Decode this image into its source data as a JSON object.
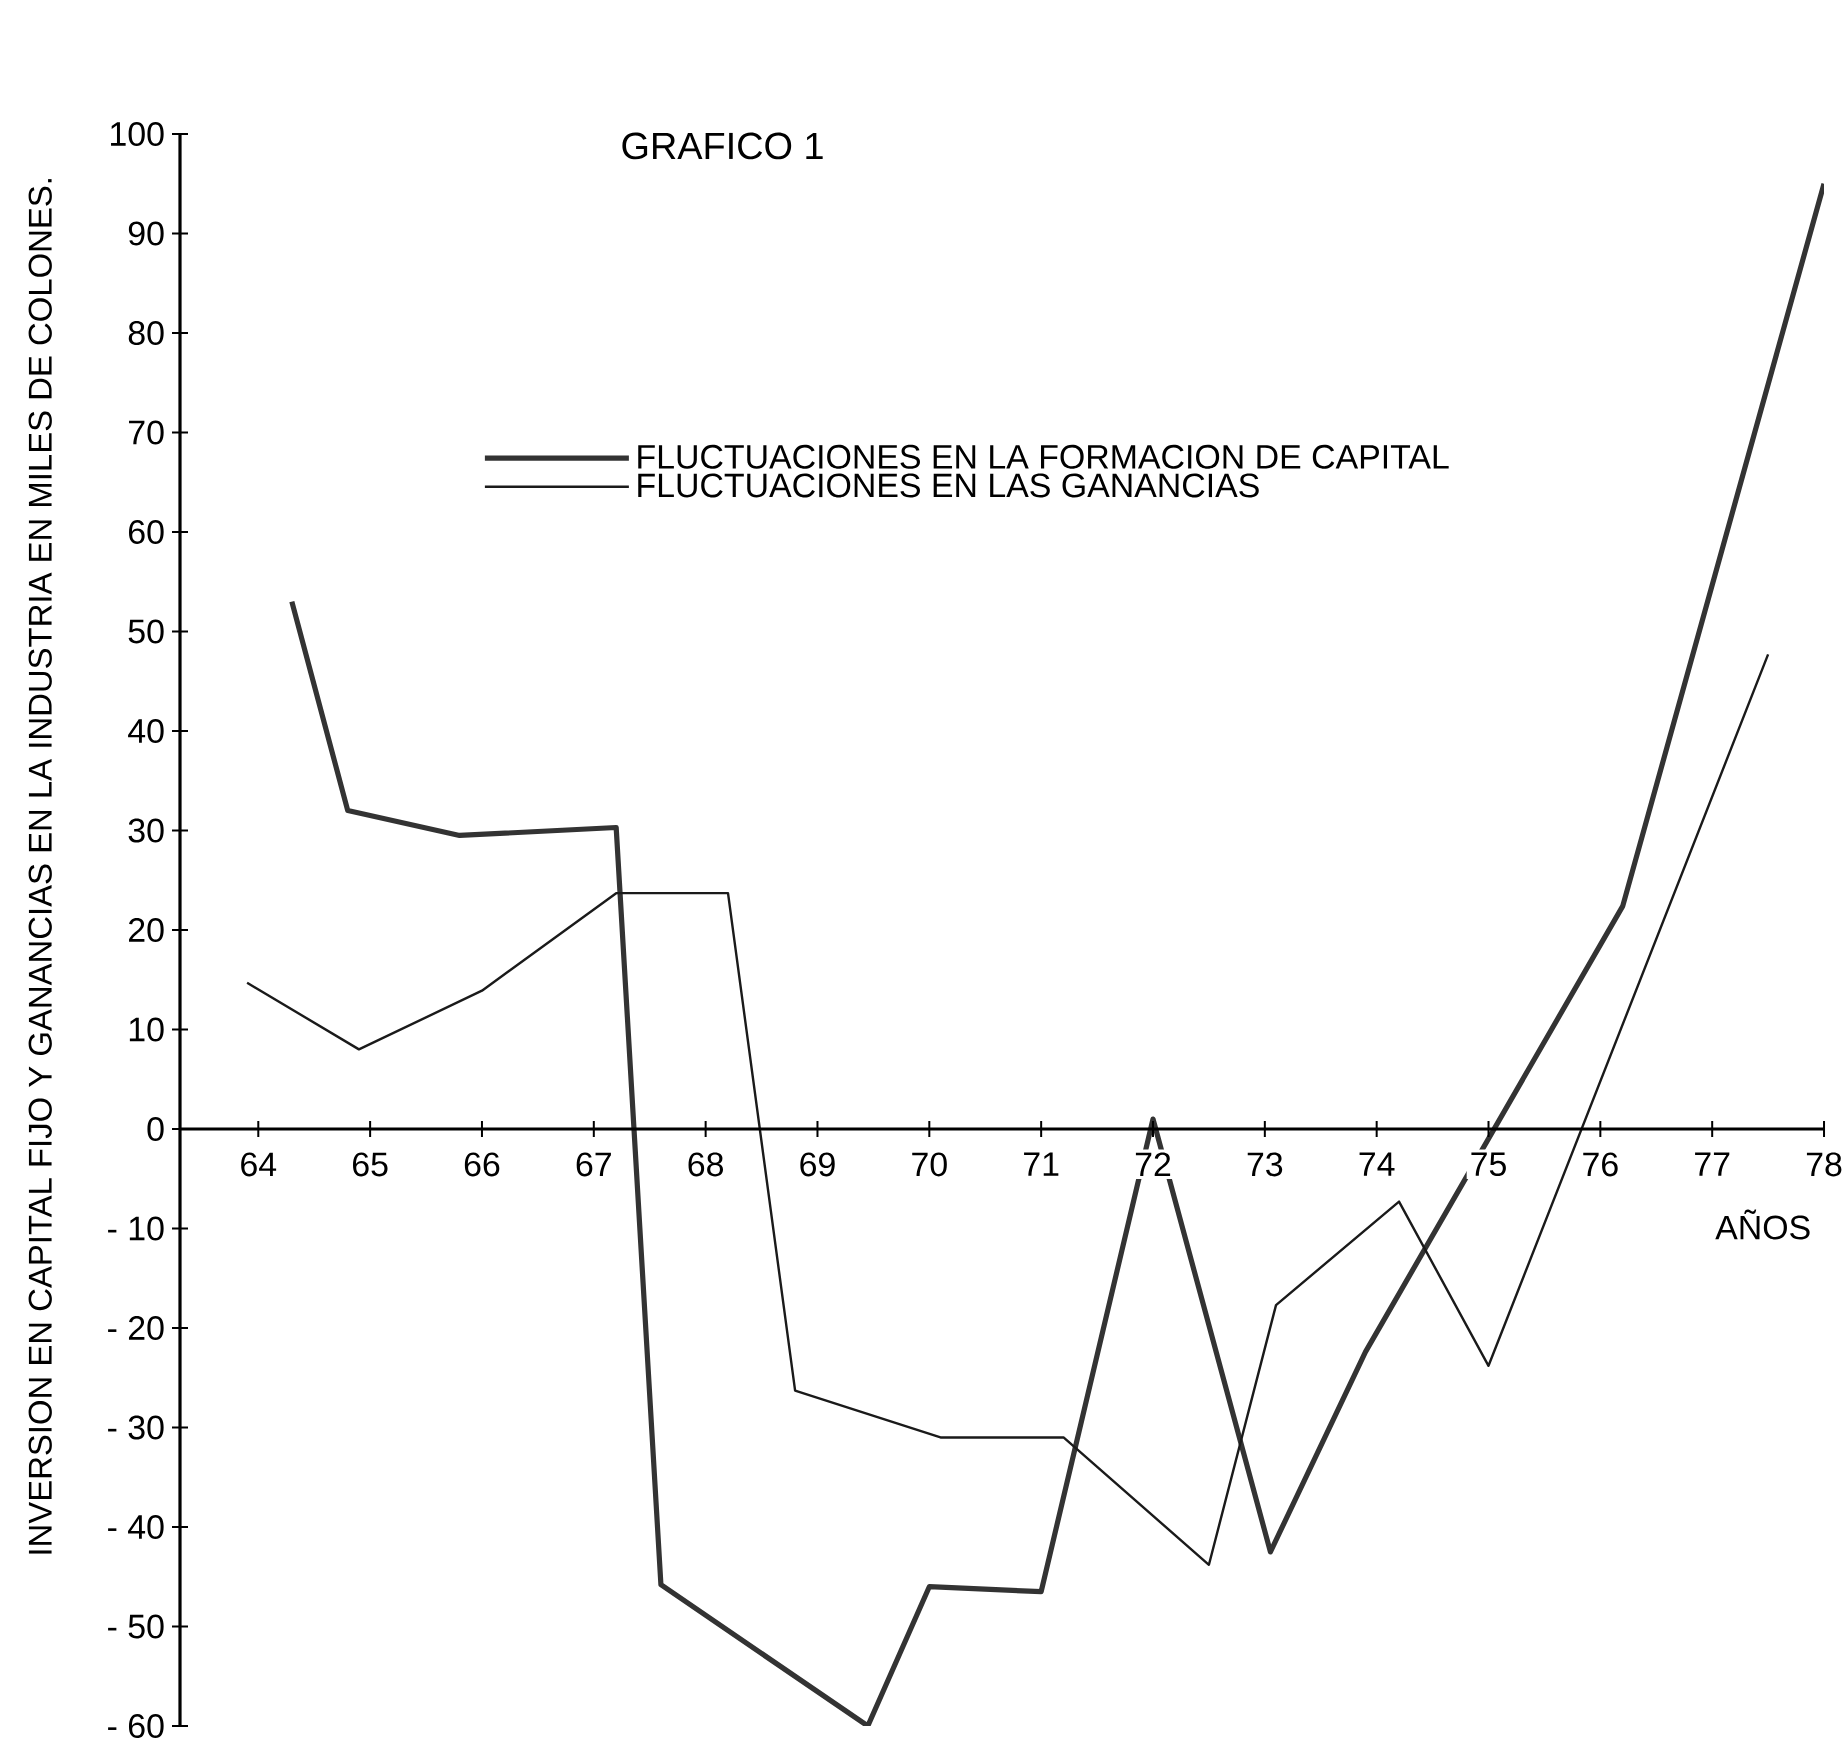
{
  "chart_data": {
    "type": "line",
    "title": "GRAFICO 1",
    "xlabel": "AÑOS",
    "ylabel": "INVERSION EN CAPITAL FIJO Y GANANCIAS EN LA INDUSTRIA EN MILES DE COLONES.",
    "xlim": [
      63.3,
      78
    ],
    "xticks": [
      64,
      65,
      66,
      67,
      68,
      69,
      70,
      71,
      72,
      73,
      74,
      75,
      76,
      77,
      78
    ],
    "ylim": [
      -60,
      100
    ],
    "yticks": [
      {
        "value": -60,
        "label": "- 60"
      },
      {
        "value": -50,
        "label": "- 50"
      },
      {
        "value": -40,
        "label": "- 40"
      },
      {
        "value": -30,
        "label": "- 30"
      },
      {
        "value": -20,
        "label": "- 20"
      },
      {
        "value": -10,
        "label": "- 10"
      },
      0,
      10,
      20,
      30,
      40,
      50,
      60,
      70,
      80,
      90,
      100
    ],
    "grid": false,
    "legend": "top",
    "marker": "none",
    "line_style": "solid",
    "series": [
      {
        "name": "FLUCTUACIONES EN LA FORMACION DE CAPITAL",
        "color": "#333333",
        "x": [
          64.3,
          64.8,
          65.8,
          67.2,
          67.6,
          69.45,
          70,
          71,
          72,
          73.05,
          73.9,
          76.2,
          78
        ],
        "values": [
          53,
          32,
          29.5,
          30.3,
          -45.8,
          -60,
          -46,
          -46.5,
          1,
          -42.5,
          -22.4,
          22.4,
          95
        ]
      },
      {
        "name": "FLUCTUACIONES EN LAS GANANCIAS",
        "color": "#1a1a1a",
        "x": [
          63.9,
          64.9,
          66,
          67.2,
          68.2,
          68.8,
          70.1,
          71.2,
          72.5,
          73.1,
          74.2,
          75,
          77.5
        ],
        "values": [
          14.7,
          8,
          13.9,
          23.7,
          23.7,
          -26.3,
          -31,
          -31,
          -43.8,
          -17.7,
          -7.3,
          -23.8,
          47.7
        ]
      }
    ]
  }
}
